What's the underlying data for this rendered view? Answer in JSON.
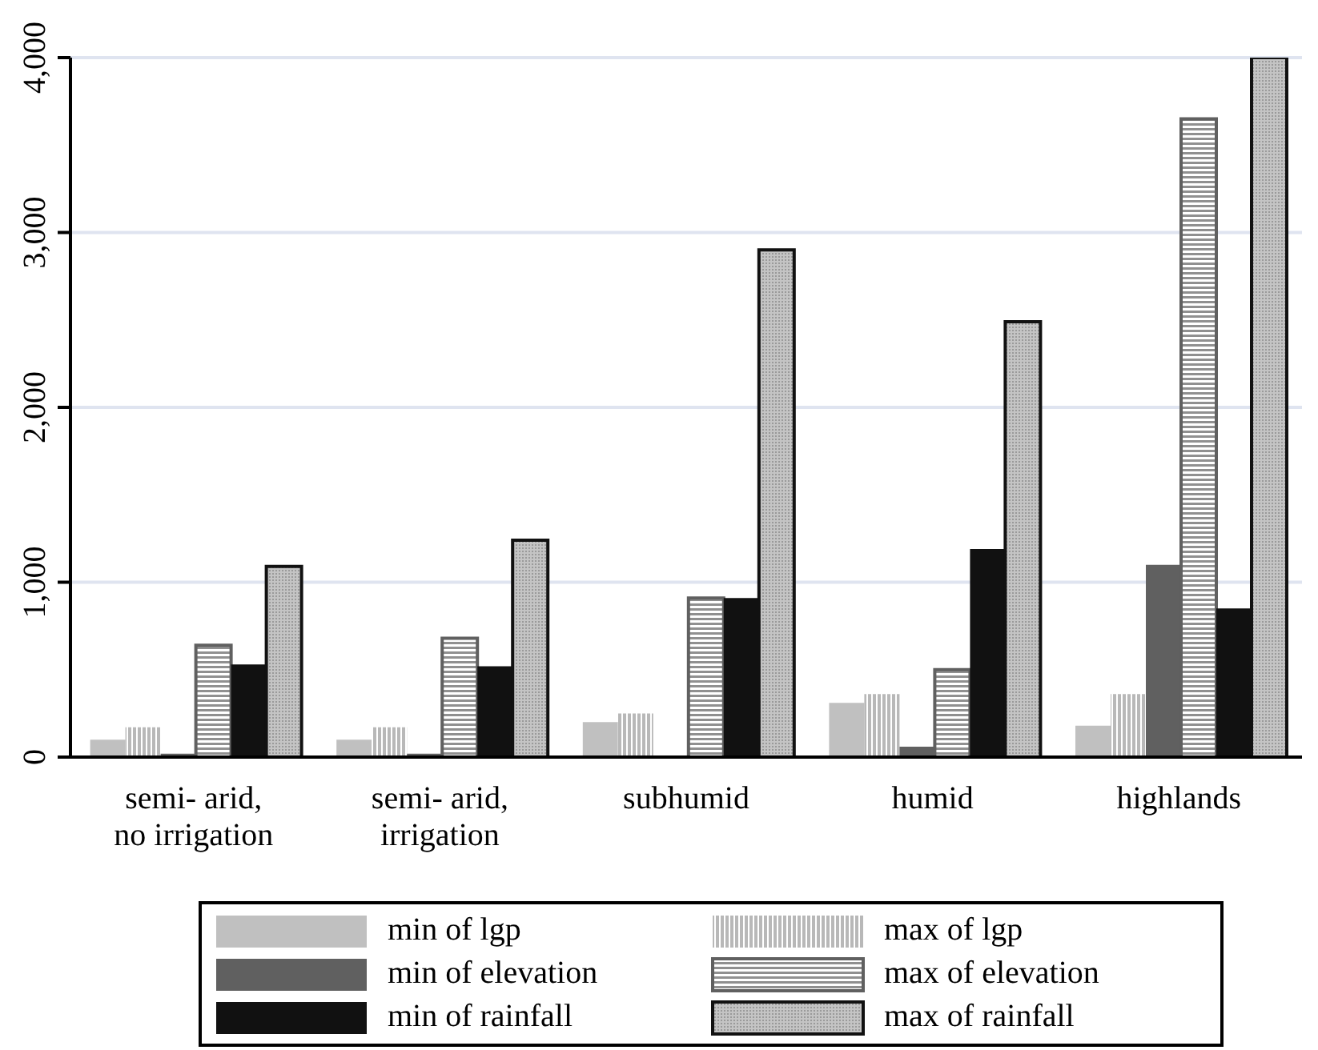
{
  "chart_data": {
    "type": "bar",
    "categories": [
      "semi- arid, no irrigation",
      "semi- arid, irrigation",
      "subhumid",
      "humid",
      "highlands"
    ],
    "series": [
      {
        "name": "min of lgp",
        "color": "#c0c0c0",
        "values": [
          100,
          100,
          200,
          310,
          180
        ]
      },
      {
        "name": "max of lgp",
        "color": "#b8b8b8",
        "values": [
          170,
          170,
          250,
          360,
          360
        ]
      },
      {
        "name": "min of elevation",
        "color": "#606060",
        "values": [
          20,
          20,
          0,
          60,
          1100
        ]
      },
      {
        "name": "max of elevation",
        "color": "#606060",
        "values": [
          640,
          680,
          910,
          500,
          3650
        ]
      },
      {
        "name": "min of rainfall",
        "color": "#111111",
        "values": [
          530,
          520,
          910,
          1190,
          850
        ]
      },
      {
        "name": "max of rainfall",
        "color": "#111111",
        "values": [
          1090,
          1240,
          2900,
          2490,
          4000
        ]
      }
    ],
    "ylim": [
      0,
      4000
    ],
    "yticks": [
      {
        "value": 0,
        "label": "0"
      },
      {
        "value": 1000,
        "label": "1,000"
      },
      {
        "value": 2000,
        "label": "2,000"
      },
      {
        "value": 3000,
        "label": "3,000"
      },
      {
        "value": 4000,
        "label": "4,000"
      }
    ],
    "grid": "y",
    "legend": "bottom"
  }
}
